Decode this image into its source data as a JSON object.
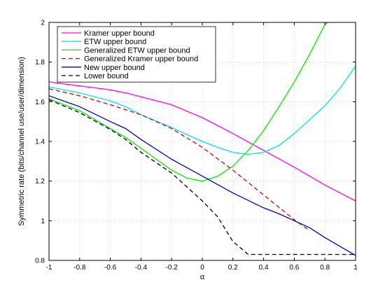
{
  "chart_data": {
    "type": "line",
    "title": "",
    "xlabel": "α",
    "ylabel": "Symmetric rate (bits/channel use/user/dimension)",
    "xlim": [
      -1,
      1
    ],
    "ylim": [
      0.8,
      2
    ],
    "x_ticks": [
      -1,
      -0.8,
      -0.6,
      -0.4,
      -0.2,
      0,
      0.2,
      0.4,
      0.6,
      0.8,
      1
    ],
    "x_tick_labels": [
      "-1",
      "-0.8",
      "-0.6",
      "-0.4",
      "-0.2",
      "0",
      "0.2",
      "0.4",
      "0.6",
      "0.8",
      "1"
    ],
    "y_ticks": [
      0.8,
      1,
      1.2,
      1.4,
      1.6,
      1.8,
      2
    ],
    "y_tick_labels": [
      "0.8",
      "1",
      "1.2",
      "1.4",
      "1.6",
      "1.8",
      "2"
    ],
    "grid": true,
    "legend_position": "top-left",
    "series": [
      {
        "name": "Kramer upper bound",
        "color": "#ff00ff",
        "dash": "solid",
        "points": [
          [
            -1,
            1.7
          ],
          [
            -0.8,
            1.68
          ],
          [
            -0.6,
            1.66
          ],
          [
            -0.5,
            1.645
          ],
          [
            -0.4,
            1.625
          ],
          [
            -0.2,
            1.585
          ],
          [
            0,
            1.52
          ],
          [
            0.2,
            1.44
          ],
          [
            0.4,
            1.355
          ],
          [
            0.6,
            1.27
          ],
          [
            0.8,
            1.18
          ],
          [
            1,
            1.1
          ]
        ]
      },
      {
        "name": "ETW upper bound",
        "color": "#00e5e5",
        "dash": "solid",
        "points": [
          [
            -1,
            1.675
          ],
          [
            -0.8,
            1.645
          ],
          [
            -0.6,
            1.605
          ],
          [
            -0.5,
            1.575
          ],
          [
            -0.4,
            1.535
          ],
          [
            -0.2,
            1.47
          ],
          [
            0,
            1.4
          ],
          [
            0.1,
            1.37
          ],
          [
            0.2,
            1.345
          ],
          [
            0.3,
            1.335
          ],
          [
            0.4,
            1.345
          ],
          [
            0.5,
            1.38
          ],
          [
            0.6,
            1.44
          ],
          [
            0.7,
            1.51
          ],
          [
            0.8,
            1.58
          ],
          [
            0.9,
            1.67
          ],
          [
            1,
            1.78
          ]
        ]
      },
      {
        "name": "Generalized ETW upper bound",
        "color": "#00ee00",
        "dash": "solid",
        "points": [
          [
            -1,
            1.615
          ],
          [
            -0.8,
            1.555
          ],
          [
            -0.6,
            1.465
          ],
          [
            -0.5,
            1.42
          ],
          [
            -0.4,
            1.365
          ],
          [
            -0.3,
            1.31
          ],
          [
            -0.2,
            1.255
          ],
          [
            -0.1,
            1.215
          ],
          [
            0,
            1.2
          ],
          [
            0.1,
            1.225
          ],
          [
            0.2,
            1.275
          ],
          [
            0.3,
            1.355
          ],
          [
            0.4,
            1.455
          ],
          [
            0.5,
            1.575
          ],
          [
            0.6,
            1.7
          ],
          [
            0.7,
            1.84
          ],
          [
            0.8,
            1.99
          ],
          [
            0.82,
            2.0
          ]
        ]
      },
      {
        "name": "Generalized Kramer upper bound",
        "color": "#dd0000",
        "dash": "dashed",
        "points": [
          [
            -1,
            1.665
          ],
          [
            -0.8,
            1.63
          ],
          [
            -0.6,
            1.585
          ],
          [
            -0.4,
            1.535
          ],
          [
            -0.2,
            1.465
          ],
          [
            0,
            1.37
          ],
          [
            0.2,
            1.255
          ],
          [
            0.4,
            1.13
          ],
          [
            0.6,
            1.005
          ],
          [
            0.7,
            0.95
          ]
        ]
      },
      {
        "name": "New upper bound",
        "color": "#0000cc",
        "dash": "solid",
        "points": [
          [
            -1,
            1.63
          ],
          [
            -0.8,
            1.575
          ],
          [
            -0.6,
            1.5
          ],
          [
            -0.5,
            1.465
          ],
          [
            -0.4,
            1.41
          ],
          [
            -0.2,
            1.31
          ],
          [
            0,
            1.225
          ],
          [
            0.2,
            1.14
          ],
          [
            0.4,
            1.065
          ],
          [
            0.5,
            1.035
          ],
          [
            0.6,
            1.0
          ],
          [
            0.7,
            0.965
          ],
          [
            0.8,
            0.915
          ],
          [
            0.9,
            0.87
          ],
          [
            1,
            0.825
          ]
        ]
      },
      {
        "name": "Lower bound",
        "color": "#000000",
        "dash": "dashed",
        "points": [
          [
            -1,
            1.61
          ],
          [
            -0.8,
            1.545
          ],
          [
            -0.6,
            1.46
          ],
          [
            -0.5,
            1.41
          ],
          [
            -0.4,
            1.345
          ],
          [
            -0.2,
            1.24
          ],
          [
            0,
            1.1
          ],
          [
            0.1,
            1.02
          ],
          [
            0.2,
            0.895
          ],
          [
            0.3,
            0.83
          ],
          [
            0.6,
            0.83
          ],
          [
            1,
            0.83
          ]
        ]
      }
    ]
  }
}
